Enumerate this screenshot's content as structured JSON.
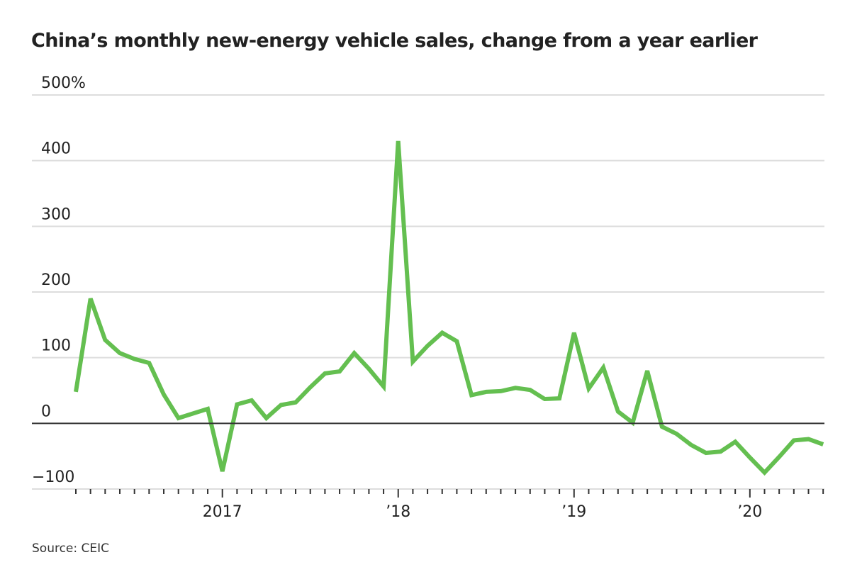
{
  "source": "Source: CEIC",
  "colors": {
    "line": "#64bf50",
    "grid": "#dddddd",
    "zero": "#333333",
    "axis": "#dddddd",
    "tick": "#333333"
  },
  "chart_data": {
    "type": "line",
    "title": "China’s monthly new-energy vehicle sales, change from a year earlier",
    "xlabel": "",
    "ylabel": "",
    "ylim": [
      -100,
      500
    ],
    "y_ticks": [
      500,
      400,
      300,
      200,
      100,
      0,
      -100
    ],
    "y_tick_labels": [
      "500%",
      "400",
      "300",
      "200",
      "100",
      "0",
      "−100"
    ],
    "x_tick_labels": [
      {
        "label": "2017",
        "index": 10
      },
      {
        "label": "’18",
        "index": 22
      },
      {
        "label": "’19",
        "index": 34
      },
      {
        "label": "’20",
        "index": 46
      }
    ],
    "grid": true,
    "legend": "none",
    "x": [
      "2016-03",
      "2016-04",
      "2016-05",
      "2016-06",
      "2016-07",
      "2016-08",
      "2016-09",
      "2016-10",
      "2016-11",
      "2016-12",
      "2017-01",
      "2017-02",
      "2017-03",
      "2017-04",
      "2017-05",
      "2017-06",
      "2017-07",
      "2017-08",
      "2017-09",
      "2017-10",
      "2017-11",
      "2017-12",
      "2018-01",
      "2018-02",
      "2018-03",
      "2018-04",
      "2018-05",
      "2018-06",
      "2018-07",
      "2018-08",
      "2018-09",
      "2018-10",
      "2018-11",
      "2018-12",
      "2019-01",
      "2019-02",
      "2019-03",
      "2019-04",
      "2019-05",
      "2019-06",
      "2019-07",
      "2019-08",
      "2019-09",
      "2019-10",
      "2019-11",
      "2019-12",
      "2020-01",
      "2020-02",
      "2020-03",
      "2020-04",
      "2020-05",
      "2020-06"
    ],
    "series": [
      {
        "name": "NEV sales, year-over-year change (%)",
        "values": [
          48,
          190,
          127,
          107,
          98,
          92,
          44,
          8,
          15,
          22,
          -73,
          29,
          35,
          8,
          28,
          32,
          55,
          76,
          79,
          107,
          83,
          56,
          430,
          94,
          118,
          138,
          125,
          43,
          48,
          49,
          54,
          51,
          37,
          38,
          138,
          53,
          85,
          18,
          1,
          80,
          -5,
          -16,
          -33,
          -45,
          -43,
          -28,
          -52,
          -75,
          -51,
          -26,
          -24,
          -32
        ]
      }
    ]
  }
}
